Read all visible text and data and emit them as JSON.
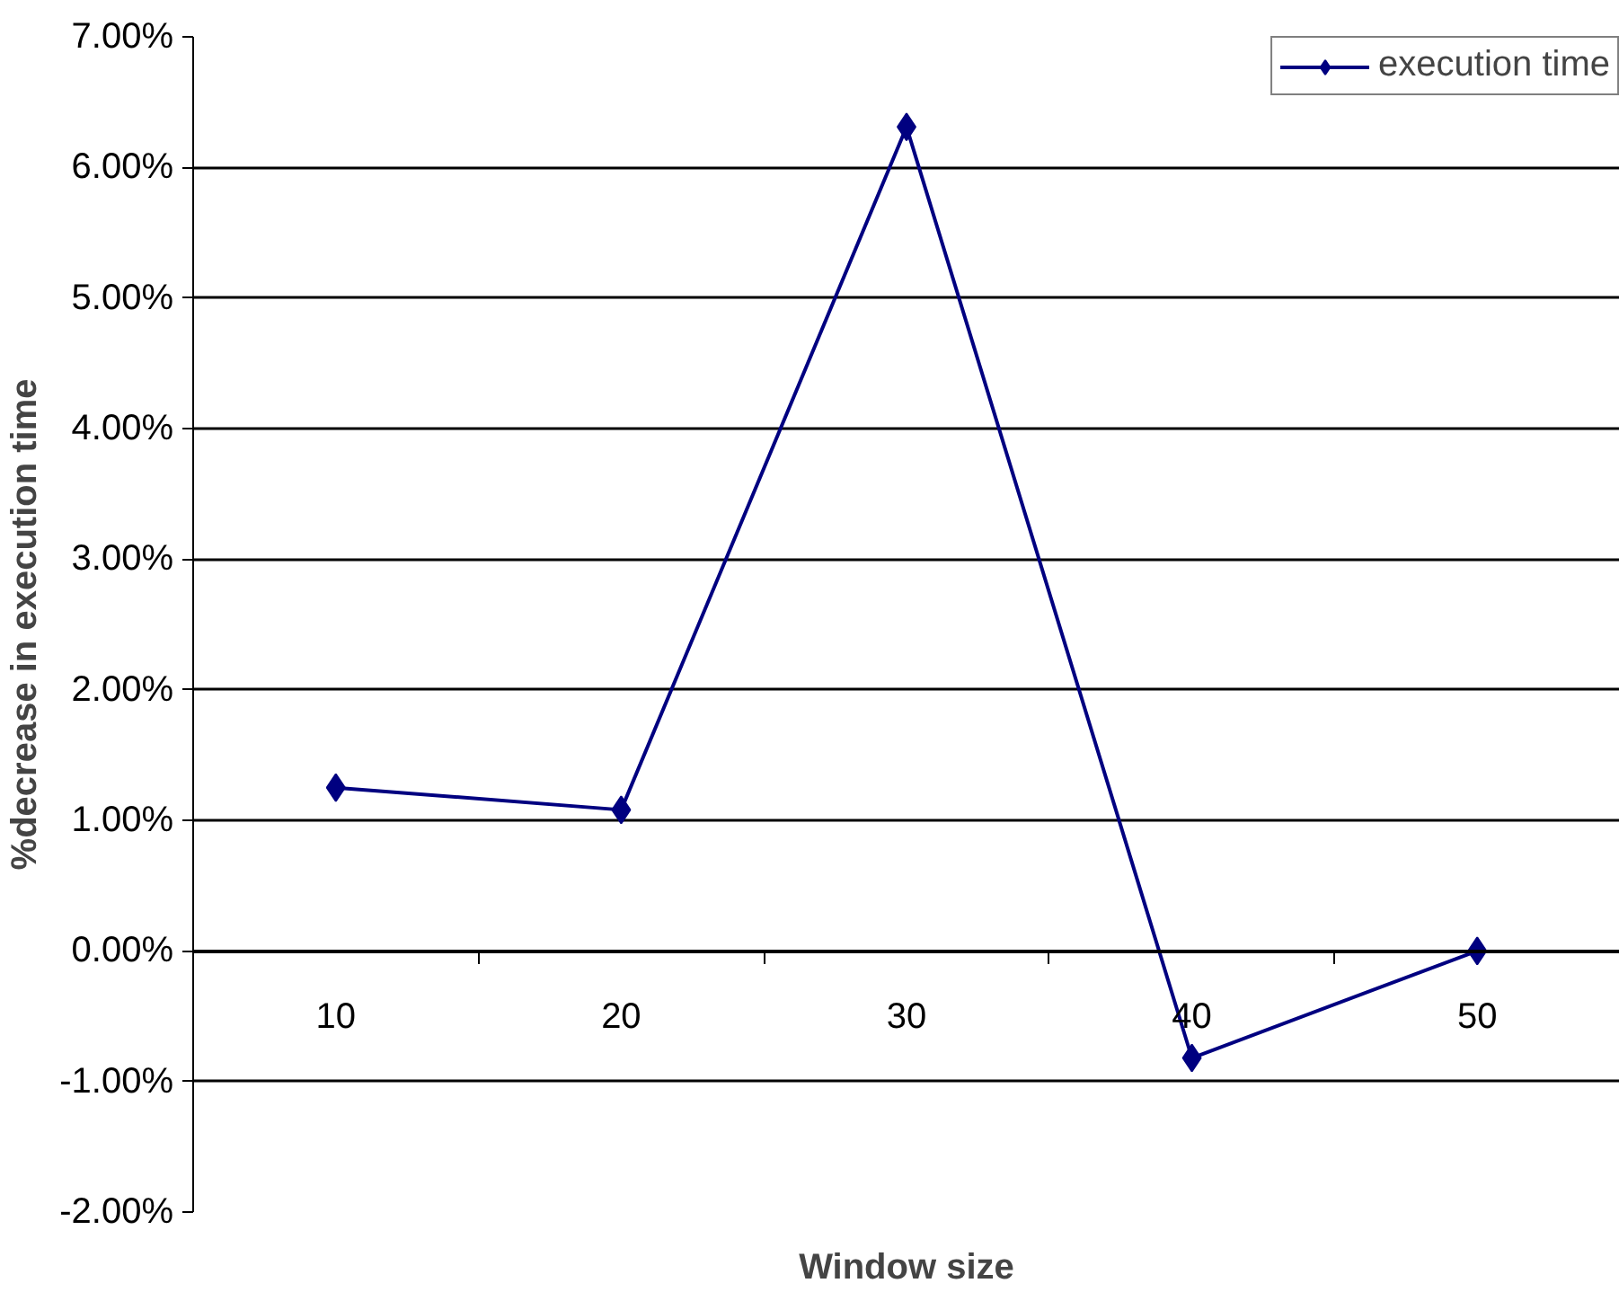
{
  "chart_data": {
    "type": "line",
    "xlabel": "Window size",
    "ylabel": "%decrease in execution time",
    "categories": [
      "10",
      "20",
      "30",
      "40",
      "50"
    ],
    "series": [
      {
        "name": "execution time",
        "color": "#000080",
        "values": [
          1.25,
          1.08,
          6.31,
          -0.82,
          0.0
        ]
      }
    ],
    "ylim": [
      -2,
      7
    ],
    "yticks": [
      {
        "value": -2,
        "label": "-2.00%"
      },
      {
        "value": -1,
        "label": "-1.00%"
      },
      {
        "value": 0,
        "label": "0.00%"
      },
      {
        "value": 1,
        "label": "1.00%"
      },
      {
        "value": 2,
        "label": "2.00%"
      },
      {
        "value": 3,
        "label": "3.00%"
      },
      {
        "value": 4,
        "label": "4.00%"
      },
      {
        "value": 5,
        "label": "5.00%"
      },
      {
        "value": 6,
        "label": "6.00%"
      },
      {
        "value": 7,
        "label": "7.00%"
      }
    ],
    "grid": "y",
    "legend": "top right",
    "marker": "diamond",
    "line_style": "solid"
  }
}
